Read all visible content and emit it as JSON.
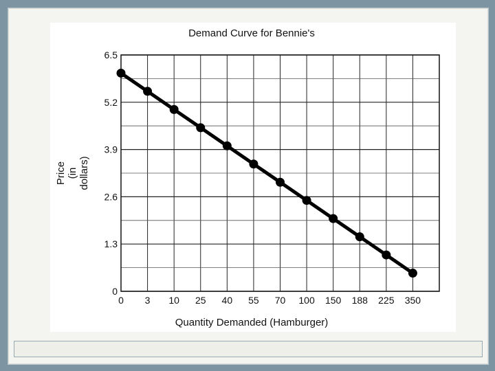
{
  "chart_data": {
    "type": "line",
    "title": "Demand Curve for Bennie's",
    "xlabel": "Quantity Demanded (Hamburger)",
    "ylabel_lines": [
      "Price",
      "(in",
      "dollars)"
    ],
    "categories": [
      "0",
      "3",
      "10",
      "25",
      "40",
      "55",
      "70",
      "100",
      "150",
      "188",
      "225",
      "350"
    ],
    "yticks": [
      "0",
      "1.3",
      "2.6",
      "3.9",
      "5.2",
      "6.5"
    ],
    "ylim": [
      0,
      6.5
    ],
    "grid": true,
    "series": [
      {
        "values": [
          6.0,
          5.5,
          5.0,
          4.5,
          4.0,
          3.5,
          3.0,
          2.5,
          2.0,
          1.5,
          1.0,
          0.5
        ]
      }
    ],
    "colors": {
      "line": "#000000",
      "grid": "#222222"
    }
  }
}
